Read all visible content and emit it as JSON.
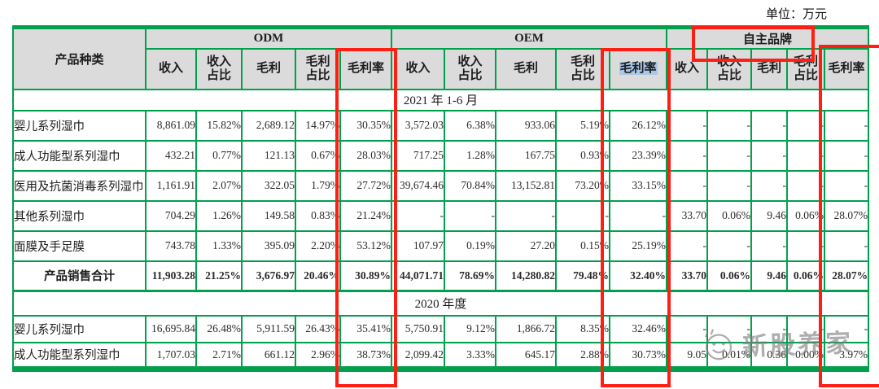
{
  "unit_label": "单位：万元",
  "table": {
    "product_col_header": "产品种类",
    "groups": [
      {
        "label": "ODM"
      },
      {
        "label": "OEM"
      },
      {
        "label": "自主品牌"
      }
    ],
    "sub_headers": [
      "收入",
      "收入\n占比",
      "毛利",
      "毛利\n占比",
      "毛利率"
    ],
    "sections": [
      {
        "label": "2021 年 1-6 月",
        "rows": [
          {
            "name": "婴儿系列湿巾",
            "bold": false,
            "odm": [
              "8,861.09",
              "15.82%",
              "2,689.12",
              "14.97%",
              "30.35%"
            ],
            "oem": [
              "3,572.03",
              "6.38%",
              "933.06",
              "5.19%",
              "26.12%"
            ],
            "own": [
              "-",
              "-",
              "-",
              "-",
              "-"
            ]
          },
          {
            "name": "成人功能型系列湿巾",
            "bold": false,
            "odm": [
              "432.21",
              "0.77%",
              "121.13",
              "0.67%",
              "28.03%"
            ],
            "oem": [
              "717.25",
              "1.28%",
              "167.75",
              "0.93%",
              "23.39%"
            ],
            "own": [
              "-",
              "-",
              "-",
              "-",
              "-"
            ]
          },
          {
            "name": "医用及抗菌消毒系列湿巾",
            "bold": false,
            "odm": [
              "1,161.91",
              "2.07%",
              "322.05",
              "1.79%",
              "27.72%"
            ],
            "oem": [
              "39,674.46",
              "70.84%",
              "13,152.81",
              "73.20%",
              "33.15%"
            ],
            "own": [
              "-",
              "-",
              "-",
              "-",
              "-"
            ]
          },
          {
            "name": "其他系列湿巾",
            "bold": false,
            "odm": [
              "704.29",
              "1.26%",
              "149.58",
              "0.83%",
              "21.24%"
            ],
            "oem": [
              "-",
              "-",
              "-",
              "-",
              "-"
            ],
            "own": [
              "33.70",
              "0.06%",
              "9.46",
              "0.06%",
              "28.07%"
            ]
          },
          {
            "name": "面膜及手足膜",
            "bold": false,
            "odm": [
              "743.78",
              "1.33%",
              "395.09",
              "2.20%",
              "53.12%"
            ],
            "oem": [
              "107.97",
              "0.19%",
              "27.20",
              "0.15%",
              "25.19%"
            ],
            "own": [
              "-",
              "-",
              "-",
              "-",
              "-"
            ]
          },
          {
            "name": "产品销售合计",
            "bold": true,
            "odm": [
              "11,903.28",
              "21.25%",
              "3,676.97",
              "20.46%",
              "30.89%"
            ],
            "oem": [
              "44,071.71",
              "78.69%",
              "14,280.82",
              "79.48%",
              "32.40%"
            ],
            "own": [
              "33.70",
              "0.06%",
              "9.46",
              "0.06%",
              "28.07%"
            ]
          }
        ]
      },
      {
        "label": "2020 年度",
        "rows": [
          {
            "name": "婴儿系列湿巾",
            "bold": false,
            "odm": [
              "16,695.84",
              "26.48%",
              "5,911.59",
              "26.43%",
              "35.41%"
            ],
            "oem": [
              "5,750.91",
              "9.12%",
              "1,866.72",
              "8.35%",
              "32.46%"
            ],
            "own": [
              "-",
              "-",
              "-",
              "-",
              "-"
            ]
          },
          {
            "name": "成人功能型系列湿巾",
            "bold": false,
            "odm": [
              "1,707.03",
              "2.71%",
              "661.12",
              "2.96%",
              "38.73%"
            ],
            "oem": [
              "2,099.42",
              "3.33%",
              "645.17",
              "2.88%",
              "30.73%"
            ],
            "own": [
              "9.05",
              "0.01%",
              "0.36",
              "0.00%",
              "3.97%"
            ]
          }
        ]
      }
    ]
  },
  "watermark": {
    "text": "新股养家"
  },
  "colors": {
    "table_border_green": "#00A04C",
    "highlight_red": "#FF1E14",
    "header_bg": "#DBDBDB",
    "selection_blue": "#A9C7E8",
    "watermark_gray": "#7d7d7d"
  }
}
